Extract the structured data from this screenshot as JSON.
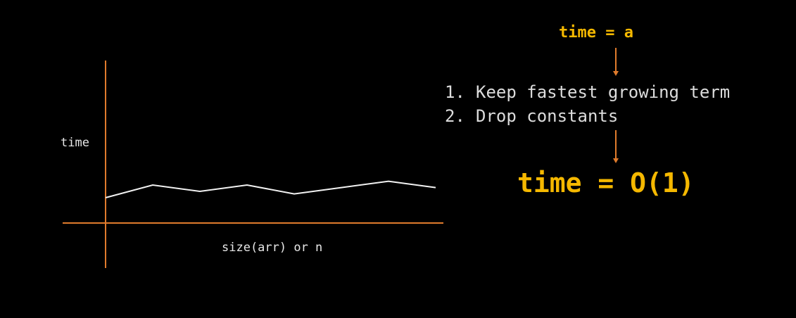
{
  "colors": {
    "background": "#000000",
    "axis": "#e07b2c",
    "arrow": "#e07b2c",
    "curve": "#f2f2f2",
    "highlight": "#f5b800",
    "text": "#e8e8e8"
  },
  "chart_data": {
    "type": "line",
    "title": "",
    "xlabel": "size(arr) or n",
    "ylabel": "time",
    "x": [
      0,
      1,
      2,
      3,
      4,
      5,
      6,
      7
    ],
    "y": [
      1.0,
      1.5,
      1.25,
      1.5,
      1.15,
      1.4,
      1.65,
      1.4
    ],
    "xlim": [
      0,
      7
    ],
    "ylim": [
      0,
      5
    ],
    "grid": false,
    "legend": "none"
  },
  "formula": {
    "top": "time = a",
    "result": "time = O(1)"
  },
  "steps": [
    {
      "num": "1.",
      "text": "Keep fastest growing term"
    },
    {
      "num": "2.",
      "text": "Drop constants"
    }
  ]
}
